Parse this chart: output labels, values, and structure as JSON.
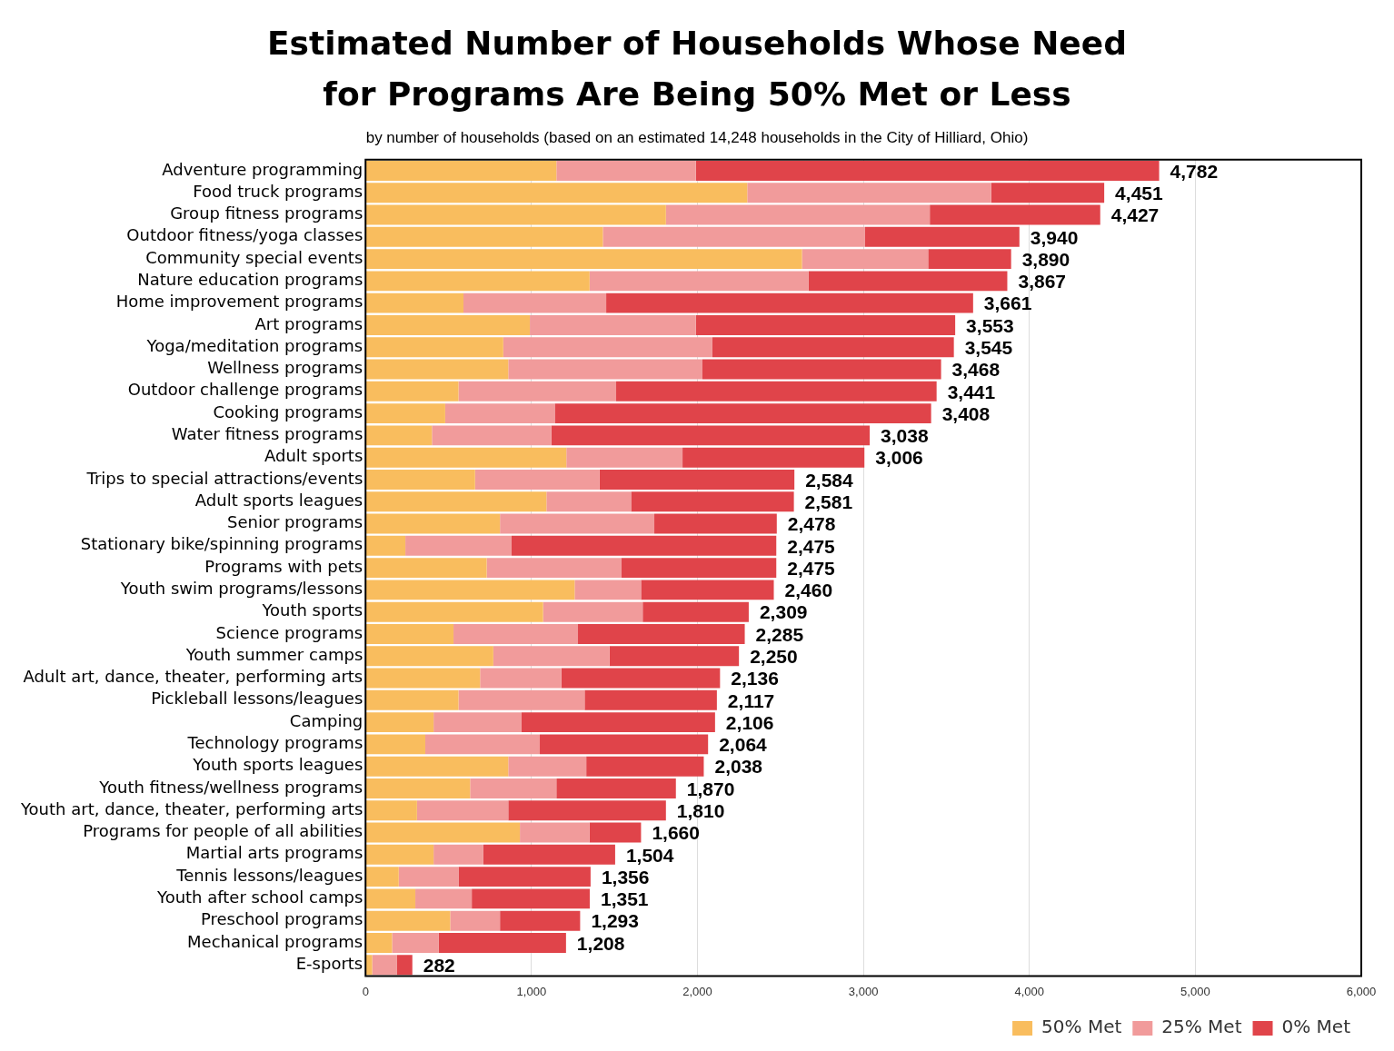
{
  "chart_data": {
    "type": "bar",
    "orientation": "horizontal",
    "stacked": true,
    "title": "Estimated Number of Households Whose Need for Programs Are Being 50% Met or Less",
    "subtitle": "by number of households (based on an estimated 14,248 households in the City of Hilliard, Ohio)",
    "categories": [
      "Adventure programming",
      "Food truck programs",
      "Group fitness programs",
      "Outdoor fitness/yoga classes",
      "Community special events",
      "Nature education programs",
      "Home improvement programs",
      "Art programs",
      "Yoga/meditation programs",
      "Wellness programs",
      "Outdoor challenge programs",
      "Cooking programs",
      "Water fitness programs",
      "Adult sports",
      "Trips to special attractions/events",
      "Adult sports leagues",
      "Senior programs",
      "Stationary bike/spinning programs",
      "Programs with pets",
      "Youth swim programs/lessons",
      "Youth sports",
      "Science programs",
      "Youth summer camps",
      "Adult art, dance, theater, performing arts",
      "Pickleball lessons/leagues",
      "Camping",
      "Technology programs",
      "Youth sports leagues",
      "Youth fitness/wellness programs",
      "Youth art, dance, theater, performing arts",
      "Programs for people of all abilities",
      "Martial arts programs",
      "Tennis lessons/leagues",
      "Youth after school camps",
      "Preschool programs",
      "Mechanical programs",
      "E-sports"
    ],
    "series": [
      {
        "name": "50% Met",
        "color": "#f9bd5e",
        "values": [
          1150,
          2300,
          1810,
          1430,
          2630,
          1350,
          590,
          990,
          830,
          860,
          560,
          480,
          400,
          1210,
          660,
          1090,
          810,
          240,
          730,
          1260,
          1070,
          530,
          770,
          690,
          560,
          410,
          360,
          860,
          630,
          310,
          930,
          410,
          200,
          300,
          510,
          160,
          40
        ]
      },
      {
        "name": "25% Met",
        "color": "#f19b9b",
        "values": [
          840,
          1470,
          1590,
          1580,
          760,
          1320,
          860,
          1000,
          1260,
          1170,
          950,
          660,
          720,
          700,
          750,
          510,
          930,
          640,
          810,
          400,
          600,
          750,
          700,
          490,
          760,
          530,
          690,
          470,
          520,
          550,
          420,
          300,
          360,
          340,
          300,
          280,
          150
        ]
      },
      {
        "name": "0% Met",
        "color": "#e0444a",
        "values": [
          2792,
          681,
          1027,
          930,
          500,
          1197,
          2211,
          1563,
          1455,
          1438,
          1931,
          2268,
          1918,
          1096,
          1174,
          981,
          738,
          1595,
          935,
          800,
          639,
          1005,
          780,
          956,
          797,
          1166,
          1014,
          708,
          720,
          950,
          310,
          794,
          796,
          711,
          483,
          768,
          92
        ]
      }
    ],
    "totals": [
      "4,782",
      "4,451",
      "4,427",
      "3,940",
      "3,890",
      "3,867",
      "3,661",
      "3,553",
      "3,545",
      "3,468",
      "3,441",
      "3,408",
      "3,038",
      "3,006",
      "2,584",
      "2,581",
      "2,478",
      "2,475",
      "2,475",
      "2,460",
      "2,309",
      "2,285",
      "2,250",
      "2,136",
      "2,117",
      "2,106",
      "2,064",
      "2,038",
      "1,870",
      "1,810",
      "1,660",
      "1,504",
      "1,356",
      "1,351",
      "1,293",
      "1,208",
      "282"
    ],
    "xlim": [
      0,
      6000
    ],
    "xticks": [
      0,
      {
        "value": 1000,
        "label": "1,000"
      },
      {
        "value": 2000,
        "label": "2,000"
      },
      {
        "value": 3000,
        "label": "3,000"
      },
      {
        "value": 4000,
        "label": "4,000"
      },
      {
        "value": 5000,
        "label": "5,000"
      },
      {
        "value": 6000,
        "label": "6,000"
      }
    ],
    "grid": "x",
    "legend": "bottom right"
  }
}
